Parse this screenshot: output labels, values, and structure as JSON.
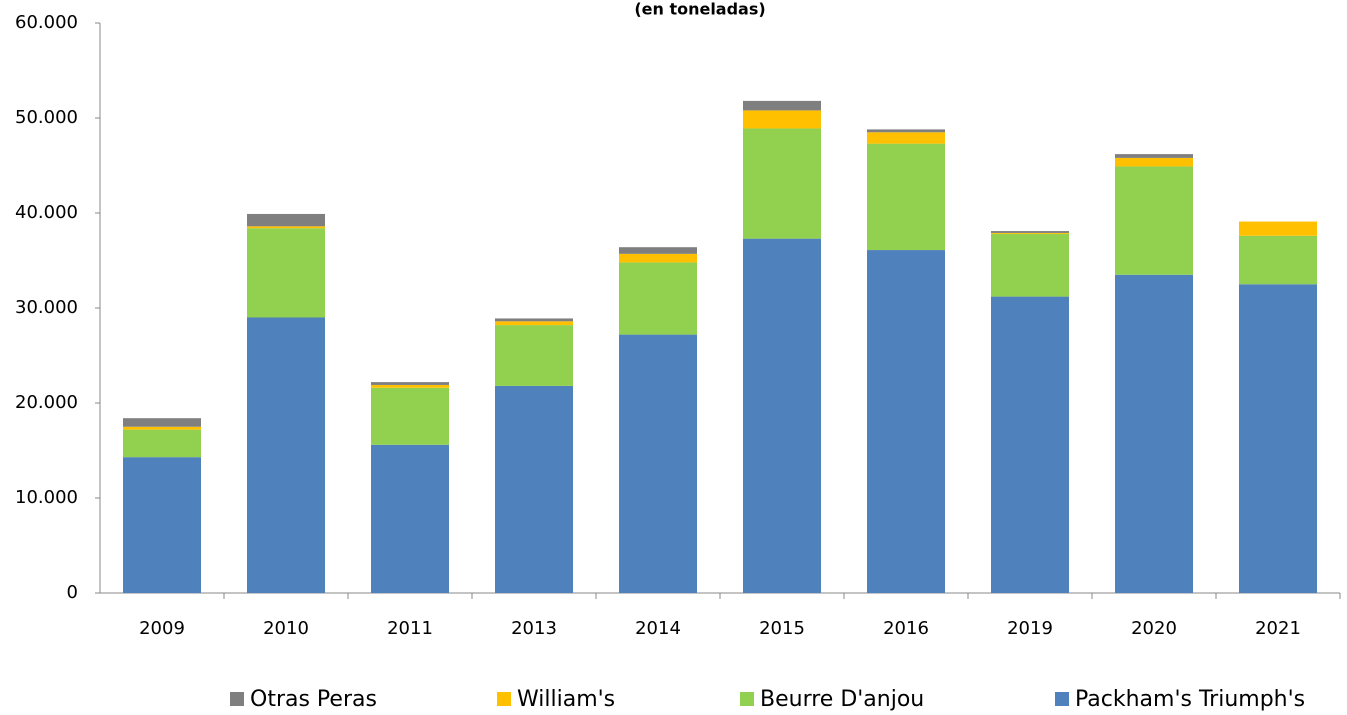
{
  "chart_data": {
    "type": "stacked_bar",
    "subtitle": "(en toneladas)",
    "categories": [
      "2009",
      "2010",
      "2011",
      "2013",
      "2014",
      "2015",
      "2016",
      "2019",
      "2020",
      "2021"
    ],
    "series": [
      {
        "name": "Otras Peras",
        "color": "#7f7f7f",
        "values": [
          900,
          1300,
          300,
          300,
          700,
          1000,
          300,
          200,
          400,
          0
        ]
      },
      {
        "name": "William's",
        "color": "#ffc000",
        "values": [
          300,
          200,
          300,
          400,
          900,
          1900,
          1200,
          100,
          900,
          1500
        ]
      },
      {
        "name": "Beurre D'anjou",
        "color": "#92d050",
        "values": [
          2900,
          9400,
          6000,
          6400,
          7600,
          11600,
          11200,
          6600,
          11400,
          5100
        ]
      },
      {
        "name": "Packham's Triumph's",
        "color": "#4f81bd",
        "values": [
          14300,
          29000,
          15600,
          21800,
          27200,
          37300,
          36100,
          31200,
          33500,
          32500
        ]
      }
    ],
    "ylim": [
      0,
      60000
    ],
    "yticks": [
      0,
      {
        "value": 10000,
        "label": "10.000"
      },
      {
        "value": 20000,
        "label": "20.000"
      },
      {
        "value": 30000,
        "label": "30.000"
      },
      {
        "value": 40000,
        "label": "40.000"
      },
      {
        "value": 50000,
        "label": "50.000"
      },
      {
        "value": 60000,
        "label": "60.000"
      }
    ]
  }
}
